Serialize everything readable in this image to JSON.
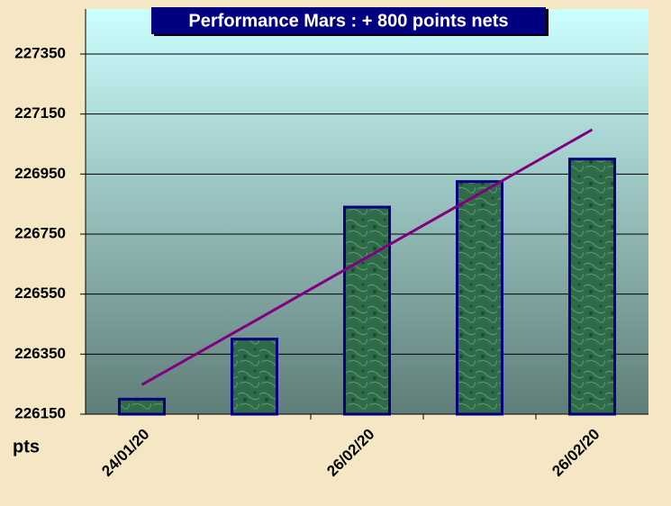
{
  "chart_data": {
    "type": "bar",
    "title": "Performance  Mars : + 800 points nets",
    "y_label": "pts",
    "categories": [
      "24/01/20",
      null,
      "26/02/20",
      null,
      "26/02/20"
    ],
    "values": [
      226200,
      226400,
      226840,
      226925,
      227000
    ],
    "color": "#2f6b48",
    "trend": {
      "values": [
        226248,
        226460,
        226673,
        226885,
        227098
      ],
      "color": "#800080"
    },
    "ylim": [
      226150,
      227500
    ],
    "yticks": [
      226150,
      226350,
      226550,
      226750,
      226950,
      227150,
      227350
    ],
    "grid": true
  }
}
